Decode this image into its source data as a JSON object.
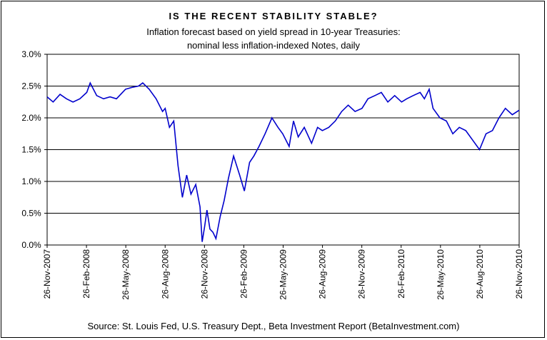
{
  "chart_data": {
    "type": "line",
    "title": "IS THE RECENT STABILITY STABLE?",
    "subtitle_lines": [
      "Inflation forecast based on yield spread in 10-year Treasuries:",
      "nominal less inflation-indexed Notes, daily"
    ],
    "source": "Source: St. Louis Fed, U.S. Treasury Dept., Beta Investment Report (BetaInvestment.com)",
    "y_ticks": [
      "0.0%",
      "0.5%",
      "1.0%",
      "1.5%",
      "2.0%",
      "2.5%",
      "3.0%"
    ],
    "ylim": [
      0,
      3.0
    ],
    "x_ticks": [
      "26-Nov-2007",
      "26-Feb-2008",
      "26-May-2008",
      "26-Aug-2008",
      "26-Nov-2008",
      "26-Feb-2009",
      "26-May-2009",
      "26-Aug-2009",
      "26-Nov-2009",
      "26-Feb-2010",
      "26-May-2010",
      "26-Aug-2010",
      "26-Nov-2010"
    ],
    "xlim": [
      "2007-11-26",
      "2010-11-26"
    ],
    "grid": "horizontal",
    "line_color": "#0000cc",
    "series": [
      {
        "x": [
          "2007-11-26",
          "2007-12-10",
          "2007-12-26",
          "2008-01-10",
          "2008-01-25",
          "2008-02-10",
          "2008-02-26",
          "2008-03-05",
          "2008-03-20",
          "2008-04-05",
          "2008-04-20",
          "2008-05-05",
          "2008-05-26",
          "2008-06-10",
          "2008-06-25",
          "2008-07-05",
          "2008-07-20",
          "2008-08-05",
          "2008-08-20",
          "2008-08-26",
          "2008-09-05",
          "2008-09-15",
          "2008-09-25",
          "2008-10-05",
          "2008-10-15",
          "2008-10-25",
          "2008-11-05",
          "2008-11-15",
          "2008-11-20",
          "2008-11-26",
          "2008-12-01",
          "2008-12-08",
          "2008-12-15",
          "2008-12-22",
          "2009-01-01",
          "2009-01-10",
          "2009-01-20",
          "2009-02-01",
          "2009-02-15",
          "2009-02-26",
          "2009-03-10",
          "2009-03-20",
          "2009-04-01",
          "2009-04-15",
          "2009-05-01",
          "2009-05-15",
          "2009-05-26",
          "2009-06-10",
          "2009-06-20",
          "2009-07-01",
          "2009-07-15",
          "2009-08-01",
          "2009-08-15",
          "2009-08-26",
          "2009-09-10",
          "2009-09-25",
          "2009-10-10",
          "2009-10-25",
          "2009-11-10",
          "2009-11-26",
          "2009-12-10",
          "2009-12-26",
          "2010-01-10",
          "2010-01-25",
          "2010-02-10",
          "2010-02-26",
          "2010-03-10",
          "2010-03-25",
          "2010-04-10",
          "2010-04-20",
          "2010-05-01",
          "2010-05-10",
          "2010-05-26",
          "2010-06-10",
          "2010-06-25",
          "2010-07-10",
          "2010-07-25",
          "2010-08-10",
          "2010-08-26",
          "2010-09-10",
          "2010-09-25",
          "2010-10-10",
          "2010-10-25",
          "2010-11-10",
          "2010-11-26"
        ],
        "values": [
          2.33,
          2.25,
          2.37,
          2.3,
          2.25,
          2.3,
          2.4,
          2.55,
          2.35,
          2.3,
          2.33,
          2.3,
          2.45,
          2.48,
          2.5,
          2.55,
          2.45,
          2.3,
          2.1,
          2.15,
          1.85,
          1.95,
          1.25,
          0.75,
          1.1,
          0.8,
          0.95,
          0.6,
          0.05,
          0.3,
          0.55,
          0.25,
          0.2,
          0.1,
          0.45,
          0.7,
          1.05,
          1.4,
          1.1,
          0.85,
          1.3,
          1.4,
          1.55,
          1.75,
          2.0,
          1.85,
          1.75,
          1.55,
          1.95,
          1.7,
          1.85,
          1.6,
          1.85,
          1.8,
          1.85,
          1.95,
          2.1,
          2.2,
          2.1,
          2.15,
          2.3,
          2.35,
          2.4,
          2.25,
          2.35,
          2.25,
          2.3,
          2.35,
          2.4,
          2.3,
          2.45,
          2.15,
          2.0,
          1.95,
          1.75,
          1.85,
          1.8,
          1.65,
          1.5,
          1.75,
          1.8,
          2.0,
          2.15,
          2.05,
          2.12
        ]
      }
    ]
  }
}
